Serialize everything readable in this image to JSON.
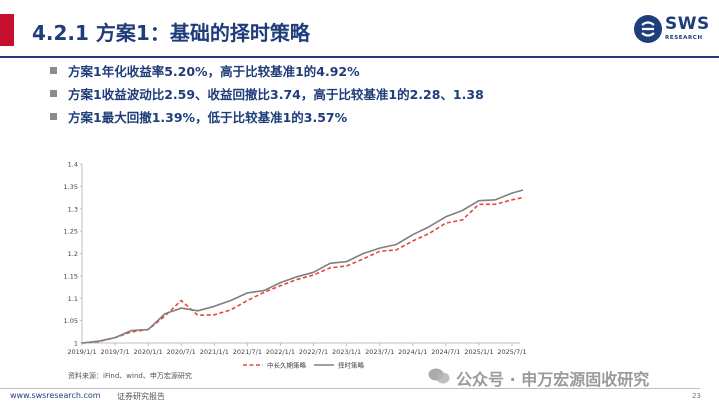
{
  "header": {
    "title": "4.2.1 方案1：基础的择时策略",
    "logo_text": "SWS",
    "logo_sub": "RESEARCH",
    "accent_color": "#c8102e",
    "brand_color": "#1f3d7a"
  },
  "bullets": [
    "方案1年化收益率5.20%，高于比较基准1的4.92%",
    "方案1收益波动比2.59、收益回撤比3.74，高于比较基准1的2.28、1.38",
    "方案1最大回撤1.39%，低于比较基准1的3.57%"
  ],
  "chart_data": {
    "type": "line",
    "x": [
      "2019/1/1",
      "2019/4/1",
      "2019/7/1",
      "2019/10/1",
      "2020/1/1",
      "2020/4/1",
      "2020/7/1",
      "2020/10/1",
      "2021/1/1",
      "2021/4/1",
      "2021/7/1",
      "2021/10/1",
      "2022/1/1",
      "2022/4/1",
      "2022/7/1",
      "2022/10/1",
      "2023/1/1",
      "2023/4/1",
      "2023/7/1",
      "2023/10/1",
      "2024/1/1",
      "2024/4/1",
      "2024/7/1",
      "2024/10/1",
      "2025/1/1",
      "2025/4/1",
      "2025/7/1",
      "2025/9/1"
    ],
    "xticks": [
      "2019/1/1",
      "2019/7/1",
      "2020/1/1",
      "2020/7/1",
      "2021/1/1",
      "2021/7/1",
      "2022/1/1",
      "2022/7/1",
      "2023/1/1",
      "2023/7/1",
      "2024/1/1",
      "2024/7/1",
      "2025/1/1",
      "2025/7/1"
    ],
    "series": [
      {
        "name": "中长久期策略",
        "style": "dashed",
        "color": "#e8463c",
        "values": [
          1.0,
          1.003,
          1.012,
          1.025,
          1.03,
          1.06,
          1.095,
          1.062,
          1.063,
          1.074,
          1.095,
          1.113,
          1.128,
          1.142,
          1.152,
          1.168,
          1.172,
          1.188,
          1.205,
          1.208,
          1.228,
          1.245,
          1.268,
          1.275,
          1.31,
          1.31,
          1.32,
          1.325
        ]
      },
      {
        "name": "择时策略",
        "style": "solid",
        "color": "#7f7f7f",
        "values": [
          1.0,
          1.004,
          1.012,
          1.028,
          1.03,
          1.065,
          1.078,
          1.072,
          1.082,
          1.095,
          1.112,
          1.117,
          1.135,
          1.148,
          1.158,
          1.178,
          1.182,
          1.2,
          1.212,
          1.22,
          1.242,
          1.26,
          1.282,
          1.296,
          1.318,
          1.32,
          1.335,
          1.342
        ]
      }
    ],
    "title": "",
    "xlabel": "",
    "ylabel": "",
    "ylim": [
      1.0,
      1.4
    ],
    "yticks": [
      1,
      1.05,
      1.1,
      1.15,
      1.2,
      1.25,
      1.3,
      1.35,
      1.4
    ],
    "grid": false,
    "legend": "bottom"
  },
  "source": "资料来源：iFind、wind、申万宏源研究",
  "footer": {
    "url": "www.swsresearch.com",
    "report": "证券研究报告",
    "page": "23"
  },
  "watermark": "公众号 · 申万宏源固收研究"
}
